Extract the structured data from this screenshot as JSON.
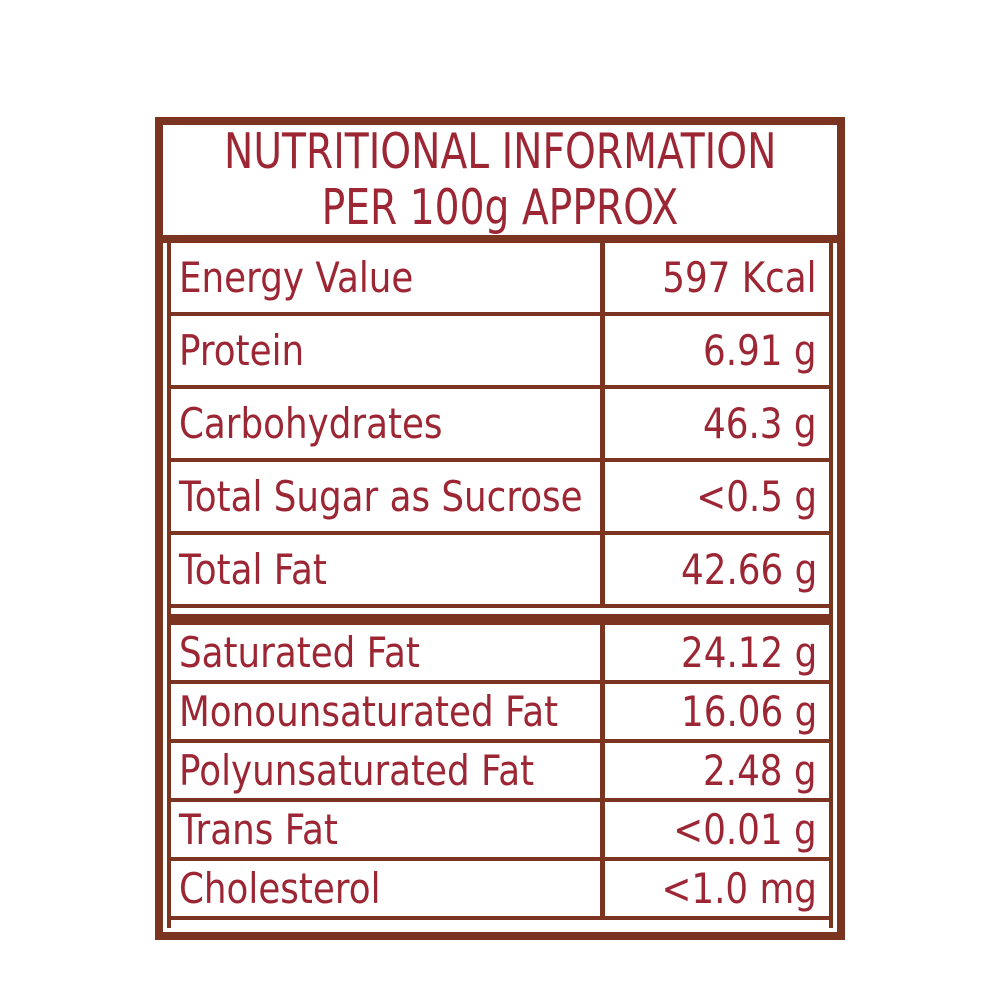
{
  "colors": {
    "border": "#7b3420",
    "text": "#9c2633",
    "background": "#ffffff"
  },
  "header": {
    "line1": "NUTRITIONAL INFORMATION",
    "line2": "PER 100g APPROX"
  },
  "table": {
    "sections": [
      {
        "rows": [
          {
            "label": "Energy Value",
            "value": "597 Kcal"
          },
          {
            "label": "Protein",
            "value": "6.91 g"
          },
          {
            "label": "Carbohydrates",
            "value": "46.3 g"
          },
          {
            "label": "Total Sugar as Sucrose",
            "value": "<0.5 g"
          },
          {
            "label": "Total Fat",
            "value": "42.66 g"
          }
        ]
      },
      {
        "rows": [
          {
            "label": "Saturated Fat",
            "value": "24.12 g"
          },
          {
            "label": "Monounsaturated Fat",
            "value": "16.06 g"
          },
          {
            "label": "Polyunsaturated Fat",
            "value": "2.48 g"
          },
          {
            "label": "Trans Fat",
            "value": "<0.01 g"
          },
          {
            "label": "Cholesterol",
            "value": "<1.0 mg"
          }
        ]
      }
    ]
  }
}
